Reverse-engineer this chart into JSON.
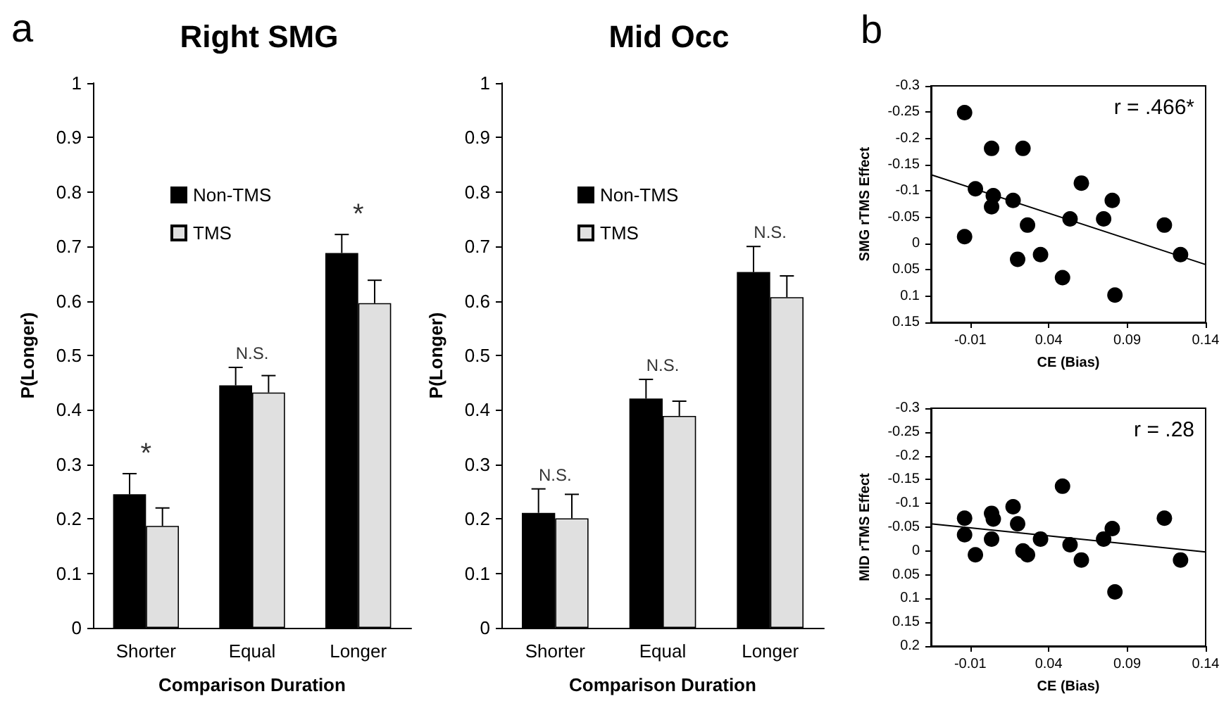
{
  "chart_data": [
    {
      "type": "bar",
      "title": "Right SMG",
      "annotations": [
        "a",
        "*",
        "N.S.",
        "*"
      ],
      "xlabel": "Comparison Duration",
      "ylabel": "P(Longer)",
      "categories": [
        "Shorter",
        "Equal",
        "Longer"
      ],
      "series": [
        {
          "name": "Non-TMS",
          "color": "#000000",
          "values": [
            0.245,
            0.445,
            0.688
          ],
          "errors": [
            [
              0.245,
              0.283
            ],
            [
              0.445,
              0.478
            ],
            [
              0.688,
              0.722
            ]
          ]
        },
        {
          "name": "TMS",
          "color": "#e0e0e0",
          "values": [
            0.187,
            0.432,
            0.596
          ],
          "errors": [
            [
              0.187,
              0.22
            ],
            [
              0.432,
              0.463
            ],
            [
              0.596,
              0.638
            ]
          ]
        }
      ],
      "ylim": [
        0,
        1
      ],
      "yticks": [
        0,
        0.1,
        0.2,
        0.3,
        0.4,
        0.5,
        0.6,
        0.7,
        0.8,
        0.9,
        1
      ],
      "legend": "top left"
    },
    {
      "type": "bar",
      "title": "Mid Occ",
      "annotations": [
        "N.S.",
        "N.S.",
        "N.S."
      ],
      "xlabel": "Comparison Duration",
      "ylabel": "P(Longer)",
      "categories": [
        "Shorter",
        "Equal",
        "Longer"
      ],
      "series": [
        {
          "name": "Non-TMS",
          "color": "#000000",
          "values": [
            0.211,
            0.421,
            0.653
          ],
          "errors": [
            [
              0.211,
              0.255
            ],
            [
              0.421,
              0.456
            ],
            [
              0.653,
              0.7
            ]
          ]
        },
        {
          "name": "TMS",
          "color": "#e0e0e0",
          "values": [
            0.201,
            0.389,
            0.607
          ],
          "errors": [
            [
              0.201,
              0.245
            ],
            [
              0.389,
              0.416
            ],
            [
              0.607,
              0.646
            ]
          ]
        }
      ],
      "ylim": [
        0,
        1
      ],
      "yticks": [
        0,
        0.1,
        0.2,
        0.3,
        0.4,
        0.5,
        0.6,
        0.7,
        0.8,
        0.9,
        1
      ],
      "legend": "top left"
    },
    {
      "type": "scatter",
      "title": "b",
      "annotations": [
        "r = .466*"
      ],
      "xlabel": "CE (Bias)",
      "ylabel": "SMG rTMS Effect",
      "marker": "circle",
      "series": [
        {
          "type": "scatter",
          "color": "#000000",
          "x": [
            -0.0136,
            -0.0136,
            -0.0067,
            0.0036,
            0.0236,
            0.0047,
            0.0036,
            0.0173,
            0.0265,
            0.0202,
            0.0348,
            0.0536,
            0.0608,
            0.0488,
            0.075,
            0.0805,
            0.0822,
            0.1137,
            0.124
          ],
          "values": [
            -0.249,
            -0.013,
            -0.104,
            -0.181,
            -0.181,
            -0.091,
            -0.07,
            -0.082,
            -0.035,
            0.03,
            0.021,
            -0.047,
            -0.115,
            0.065,
            -0.047,
            -0.082,
            0.098,
            -0.035,
            0.021
          ]
        },
        {
          "type": "line",
          "color": "#000000",
          "marker": "none",
          "x": [
            -0.035,
            0.14
          ],
          "values": [
            -0.131,
            0.04
          ]
        }
      ],
      "xlim": [
        -0.035,
        0.14
      ],
      "xticks": [
        -0.01,
        0.04,
        0.09,
        0.14
      ],
      "ylim": [
        0.15,
        -0.3
      ],
      "yticks": [
        -0.3,
        -0.25,
        -0.2,
        -0.15,
        -0.1,
        -0.05,
        0,
        0.05,
        0.1,
        0.15
      ]
    },
    {
      "type": "scatter",
      "annotations": [
        "r = .28"
      ],
      "xlabel": "CE (Bias)",
      "ylabel": "MID rTMS Effect",
      "marker": "circle",
      "series": [
        {
          "type": "scatter",
          "color": "#000000",
          "x": [
            -0.0136,
            -0.0136,
            -0.0067,
            0.0036,
            0.0047,
            0.0036,
            0.0173,
            0.0202,
            0.0236,
            0.0265,
            0.0348,
            0.0488,
            0.0536,
            0.0608,
            0.075,
            0.0805,
            0.0822,
            0.1137,
            0.124
          ],
          "values": [
            -0.069,
            -0.034,
            0.008,
            -0.079,
            -0.067,
            -0.025,
            -0.093,
            -0.057,
            0,
            0.008,
            -0.025,
            -0.136,
            -0.013,
            0.019,
            -0.025,
            -0.047,
            0.086,
            -0.069,
            0.019
          ]
        },
        {
          "type": "line",
          "color": "#000000",
          "marker": "none",
          "x": [
            -0.035,
            0.14
          ],
          "values": [
            -0.057,
            0.002
          ]
        }
      ],
      "xlim": [
        -0.035,
        0.14
      ],
      "xticks": [
        -0.01,
        0.04,
        0.09,
        0.14
      ],
      "ylim": [
        0.2,
        -0.3
      ],
      "yticks": [
        -0.3,
        -0.25,
        -0.2,
        -0.15,
        -0.1,
        -0.05,
        0,
        0.05,
        0.1,
        0.15,
        0.2
      ]
    }
  ]
}
